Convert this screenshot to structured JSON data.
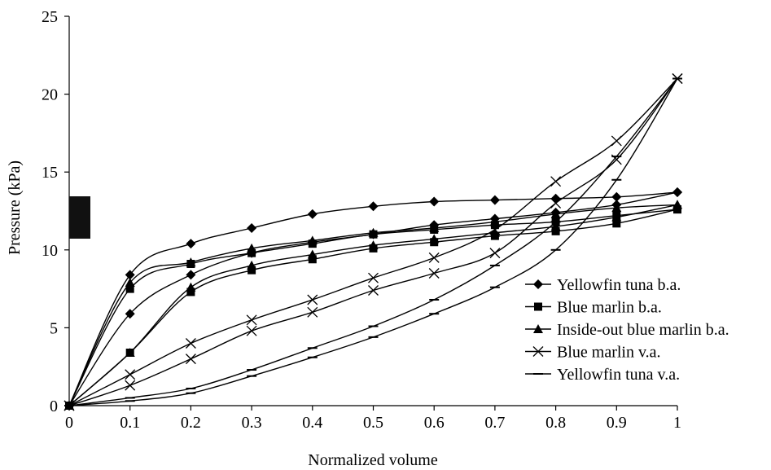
{
  "chart_data": {
    "type": "line",
    "xlabel": "Normalized volume",
    "ylabel": "Pressure (kPa)",
    "xlim": [
      0,
      1
    ],
    "ylim": [
      0,
      25
    ],
    "x_ticks": [
      "0",
      "0.1",
      "0.2",
      "0.3",
      "0.4",
      "0.5",
      "0.6",
      "0.7",
      "0.8",
      "0.9",
      "1"
    ],
    "y_ticks": [
      "0",
      "5",
      "10",
      "15",
      "20",
      "25"
    ],
    "grid": false,
    "legend_position": "right",
    "series": [
      {
        "name": "Yellowfin tuna b.a.",
        "marker": "diamond",
        "loading": {
          "x": [
            0,
            0.1,
            0.2,
            0.3,
            0.4,
            0.5,
            0.6,
            0.7,
            0.8,
            0.9,
            1
          ],
          "y": [
            0,
            5.9,
            8.4,
            9.8,
            10.5,
            11.0,
            11.6,
            12.0,
            12.4,
            12.9,
            13.7
          ]
        },
        "unloading": {
          "x": [
            1,
            0.9,
            0.8,
            0.7,
            0.6,
            0.5,
            0.4,
            0.3,
            0.2,
            0.1,
            0
          ],
          "y": [
            13.7,
            13.4,
            13.3,
            13.2,
            13.1,
            12.8,
            12.3,
            11.4,
            10.4,
            8.4,
            0
          ]
        }
      },
      {
        "name": "Blue marlin b.a.",
        "marker": "square",
        "loading": {
          "x": [
            0,
            0.1,
            0.2,
            0.3,
            0.4,
            0.5,
            0.6,
            0.7,
            0.8,
            0.9,
            1
          ],
          "y": [
            0,
            3.4,
            7.3,
            8.7,
            9.4,
            10.1,
            10.5,
            10.9,
            11.2,
            11.7,
            12.6
          ]
        },
        "unloading": {
          "x": [
            1,
            0.9,
            0.8,
            0.7,
            0.6,
            0.5,
            0.4,
            0.3,
            0.2,
            0.1,
            0
          ],
          "y": [
            12.6,
            12.2,
            11.8,
            11.6,
            11.3,
            11.0,
            10.4,
            9.8,
            9.1,
            7.5,
            0
          ]
        }
      },
      {
        "name": "Inside-out blue marlin b.a.",
        "marker": "triangle",
        "loading": {
          "x": [
            0,
            0.1,
            0.2,
            0.3,
            0.4,
            0.5,
            0.6,
            0.7,
            0.8,
            0.9,
            1
          ],
          "y": [
            0,
            3.4,
            7.6,
            9.0,
            9.7,
            10.3,
            10.7,
            11.1,
            11.5,
            12.1,
            12.9
          ]
        },
        "unloading": {
          "x": [
            1,
            0.9,
            0.8,
            0.7,
            0.6,
            0.5,
            0.4,
            0.3,
            0.2,
            0.1,
            0
          ],
          "y": [
            12.9,
            12.7,
            12.3,
            11.8,
            11.4,
            11.1,
            10.6,
            10.1,
            9.2,
            7.9,
            0
          ]
        }
      },
      {
        "name": "Blue marlin v.a.",
        "marker": "x",
        "loading": {
          "x": [
            0,
            0.1,
            0.2,
            0.3,
            0.4,
            0.5,
            0.6,
            0.7,
            0.8,
            0.9,
            1
          ],
          "y": [
            0,
            1.3,
            3.0,
            4.8,
            6.0,
            7.4,
            8.5,
            9.8,
            13.0,
            15.8,
            21.0
          ]
        },
        "unloading": {
          "x": [
            1,
            0.9,
            0.8,
            0.7,
            0.6,
            0.5,
            0.4,
            0.3,
            0.2,
            0.1,
            0
          ],
          "y": [
            21.0,
            17.0,
            14.4,
            11.3,
            9.5,
            8.2,
            6.8,
            5.5,
            4.0,
            2.0,
            0
          ]
        }
      },
      {
        "name": "Yellowfin tuna v.a.",
        "marker": "dash",
        "loading": {
          "x": [
            0,
            0.1,
            0.2,
            0.3,
            0.4,
            0.5,
            0.6,
            0.7,
            0.8,
            0.9,
            1
          ],
          "y": [
            0,
            0.3,
            0.8,
            1.9,
            3.1,
            4.4,
            5.9,
            7.6,
            10.0,
            14.5,
            21.0
          ]
        },
        "unloading": {
          "x": [
            1,
            0.9,
            0.8,
            0.7,
            0.6,
            0.5,
            0.4,
            0.3,
            0.2,
            0.1,
            0
          ],
          "y": [
            21.0,
            16.0,
            11.8,
            9.0,
            6.8,
            5.1,
            3.7,
            2.3,
            1.1,
            0.5,
            0
          ]
        }
      }
    ]
  }
}
